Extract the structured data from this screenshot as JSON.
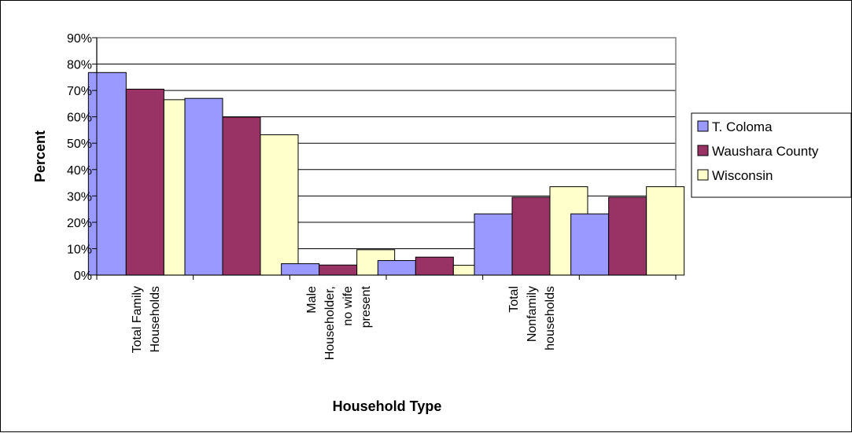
{
  "chart_data": {
    "type": "bar",
    "title": "",
    "xlabel": "Household Type",
    "ylabel": "Percent",
    "ylim": [
      0,
      90
    ],
    "y_ticks": [
      "0%",
      "10%",
      "20%",
      "30%",
      "40%",
      "50%",
      "60%",
      "70%",
      "80%",
      "90%"
    ],
    "grid": true,
    "legend_position": "right",
    "categories": [
      [
        "Total Family",
        "Households"
      ],
      [],
      [
        "Male",
        "Householder,",
        "no wife",
        "present"
      ],
      [],
      [
        "Total",
        "Nonfamily",
        "households"
      ],
      []
    ],
    "series": [
      {
        "name": "T. Coloma",
        "color": "#9999ff",
        "values": [
          76.8,
          67.0,
          4.3,
          5.5,
          23.2,
          23.2
        ]
      },
      {
        "name": "Waushara County",
        "color": "#993366",
        "values": [
          70.5,
          59.9,
          3.8,
          6.8,
          29.5,
          29.5
        ]
      },
      {
        "name": "Wisconsin",
        "color": "#ffffcc",
        "values": [
          66.5,
          53.2,
          9.6,
          3.7,
          33.5,
          33.5
        ]
      }
    ]
  }
}
